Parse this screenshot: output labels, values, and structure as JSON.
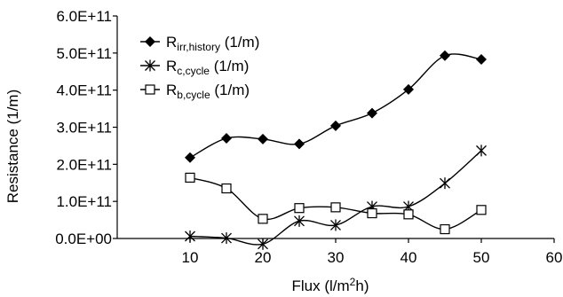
{
  "chart_data": {
    "type": "line",
    "title": "",
    "xlabel": "Flux (l/m2h)",
    "xlabel_parts": {
      "main": "Flux (l/m",
      "sup": "2",
      "tail": "h)"
    },
    "ylabel": "Resistance (1/m)",
    "xlim": [
      0,
      60
    ],
    "ylim": [
      0,
      600000000000.0
    ],
    "x_ticks": [
      10,
      20,
      30,
      40,
      50,
      60
    ],
    "x_tick_labels": [
      "10",
      "20",
      "30",
      "40",
      "50",
      "60"
    ],
    "y_ticks": [
      0,
      100000000000.0,
      200000000000.0,
      300000000000.0,
      400000000000.0,
      500000000000.0,
      600000000000.0
    ],
    "y_tick_labels": [
      "0.0E+00",
      "1.0E+11",
      "2.0E+11",
      "3.0E+11",
      "4.0E+11",
      "5.0E+11",
      "6.0E+11"
    ],
    "grid": false,
    "legend_position": "top-left",
    "x": [
      10,
      15,
      20,
      25,
      30,
      35,
      40,
      45,
      50
    ],
    "series": [
      {
        "name": "Rirr,history (1/m)",
        "legend_main": "R",
        "legend_sub": "irr,history",
        "legend_tail": " (1/m)",
        "marker": "diamond",
        "values": [
          218000000000.0,
          270000000000.0,
          268000000000.0,
          255000000000.0,
          304000000000.0,
          338000000000.0,
          402000000000.0,
          493000000000.0,
          483000000000.0
        ]
      },
      {
        "name": "Rc,cycle (1/m)",
        "legend_main": "R",
        "legend_sub": "c,cycle",
        "legend_tail": " (1/m)",
        "marker": "asterisk",
        "values": [
          6000000000.0,
          1000000000.0,
          -15000000000.0,
          47000000000.0,
          36000000000.0,
          86000000000.0,
          86000000000.0,
          149000000000.0,
          237000000000.0
        ]
      },
      {
        "name": "Rb,cycle (1/m)",
        "legend_main": "R",
        "legend_sub": "b,cycle",
        "legend_tail": " (1/m)",
        "marker": "square",
        "values": [
          164000000000.0,
          135000000000.0,
          53000000000.0,
          82000000000.0,
          84000000000.0,
          68000000000.0,
          65000000000.0,
          25000000000.0,
          77000000000.0
        ]
      }
    ]
  }
}
